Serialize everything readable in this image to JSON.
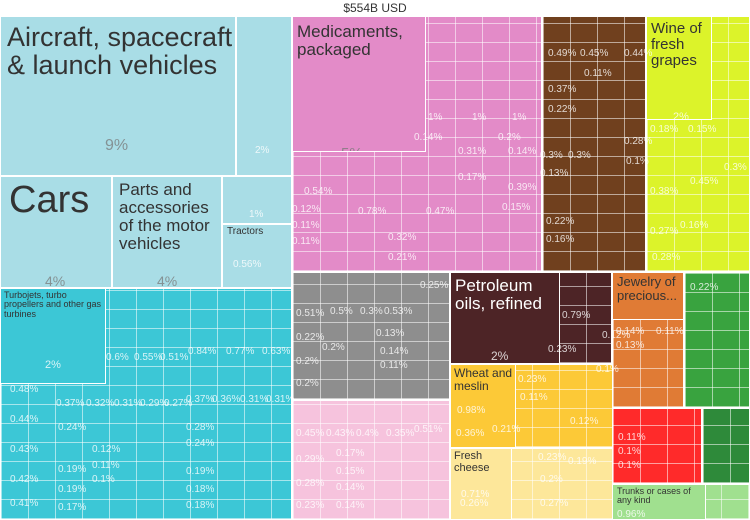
{
  "chart_data": {
    "type": "treemap",
    "title": "$554B USD",
    "tiles": [
      {
        "label": "Aircraft, spacecraft\n& launch vehicles",
        "share": "9%",
        "color": "#a9dde6"
      },
      {
        "label": "Cars",
        "share": "4%",
        "color": "#a9dde6"
      },
      {
        "label": "Parts and\naccessories\nof the motor\nvehicles",
        "share": "4%",
        "color": "#a9dde6"
      },
      {
        "label": "Tractors",
        "share": "0.56%",
        "color": "#a9dde6"
      },
      {
        "label": "",
        "share": "2%",
        "color": "#a9dde6"
      },
      {
        "label": "",
        "share": "1%",
        "color": "#a9dde6"
      },
      {
        "label": "Turbojets, turbo\npropellers and other gas\nturbines",
        "share": "2%",
        "color": "#3cc7d6"
      },
      {
        "label": "Medicaments,\npackaged",
        "share": "5%",
        "color": "#e38bc8"
      },
      {
        "label": "Wine of\nfresh\ngrapes",
        "share": "2%",
        "color": "#dcf32a"
      },
      {
        "label": "Petroleum\noils, refined",
        "share": "2%",
        "color": "#4d2426"
      },
      {
        "label": "Jewelry of\nprecious...",
        "share": "1%",
        "color": "#e07b35"
      },
      {
        "label": "Wheat and\nmeslin",
        "share": "0.98%",
        "color": "#fcc937"
      },
      {
        "label": "Fresh\ncheese",
        "share": "0.71%",
        "color": "#fde79a"
      },
      {
        "label": "Trunks or cases of\nany kind",
        "share": "0.96%",
        "color": "#a0e08f"
      }
    ],
    "minor_shares": [
      "0.6%",
      "0.55%",
      "0.51%",
      "0.84%",
      "0.77%",
      "0.63%",
      "0.48%",
      "0.44%",
      "0.43%",
      "0.42%",
      "0.41%",
      "0.37%",
      "0.32%",
      "0.31%",
      "0.29%",
      "0.27%",
      "0.37%",
      "0.36%",
      "0.31%",
      "0.31%",
      "0.24%",
      "0.19%",
      "0.19%",
      "0.17%",
      "0.12%",
      "0.11%",
      "0.1%",
      "0.28%",
      "0.24%",
      "0.19%",
      "0.18%",
      "0.18%",
      "1%",
      "1%",
      "1%",
      "0.14%",
      "0.31%",
      "0.2%",
      "0.14%",
      "0.17%",
      "0.39%",
      "0.15%",
      "0.54%",
      "0.12%",
      "0.11%",
      "0.11%",
      "0.78%",
      "0.47%",
      "0.32%",
      "0.21%",
      "0.49%",
      "0.45%",
      "0.44%",
      "0.11%",
      "0.37%",
      "0.22%",
      "0.3%",
      "0.3%",
      "0.28%",
      "0.13%",
      "0.1%",
      "0.22%",
      "0.16%",
      "0.18%",
      "0.15%",
      "0.38%",
      "0.45%",
      "0.3%",
      "0.27%",
      "0.16%",
      "0.28%",
      "0.25%",
      "0.51%",
      "0.5%",
      "0.3%",
      "0.53%",
      "0.22%",
      "0.13%",
      "0.2%",
      "0.14%",
      "0.2%",
      "0.11%",
      "0.2%",
      "0.79%",
      "0.12%",
      "0.23%",
      "0.14%",
      "0.11%",
      "0.13%",
      "0.22%",
      "0.11%",
      "0.1%",
      "0.1%",
      "0.23%",
      "0.1%",
      "0.11%",
      "0.12%",
      "0.36%",
      "0.21%",
      "0.23%",
      "0.19%",
      "0.2%",
      "0.26%",
      "0.27%",
      "0.45%",
      "0.43%",
      "0.4%",
      "0.35%",
      "0.51%",
      "0.29%",
      "0.17%",
      "0.15%",
      "0.28%",
      "0.14%",
      "0.23%",
      "0.14%"
    ]
  }
}
